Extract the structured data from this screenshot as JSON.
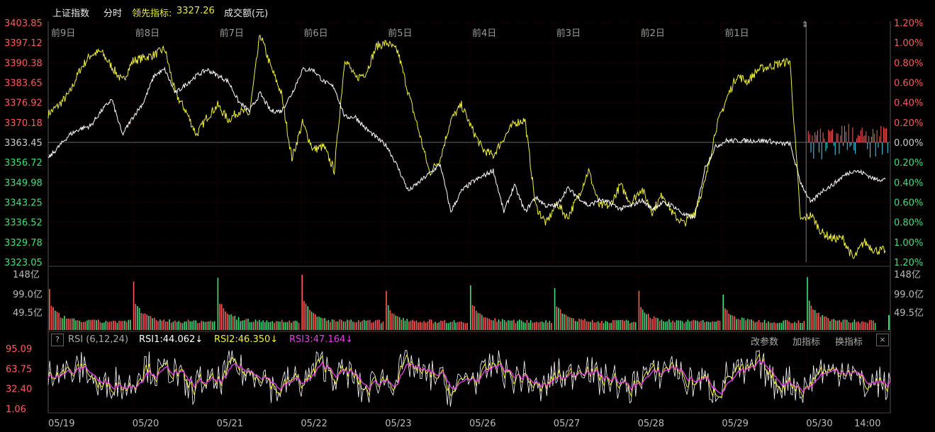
{
  "header": {
    "title": "上证指数",
    "mode": "分时",
    "lead_label": "领先指标:",
    "lead_value": "3327.26",
    "amount_label": "成交额(元)"
  },
  "colors": {
    "price_line": "#ffffff",
    "lead_line": "#f0f040",
    "up": "#ff5a5a",
    "down": "#3ee07a",
    "rsi1": "#ffffff",
    "rsi2": "#f0f040",
    "rsi3": "#e040e0",
    "flow_up": "#ff6060",
    "flow_down": "#40e0f0",
    "grid": "#3a0000"
  },
  "chart_data": [
    {
      "type": "line",
      "panel": "price",
      "day_labels": [
        "前9日",
        "前8日",
        "前7日",
        "前6日",
        "前5日",
        "前4日",
        "前3日",
        "前2日",
        "前1日"
      ],
      "x_labels": [
        "05/19",
        "05/20",
        "05/21",
        "05/22",
        "05/23",
        "05/26",
        "05/27",
        "05/28",
        "05/29",
        "05/30",
        "14:00"
      ],
      "y_left_ticks": [
        "3403.85",
        "3397.12",
        "3390.38",
        "3383.65",
        "3376.92",
        "3370.18",
        "3363.45",
        "3356.72",
        "3349.98",
        "3343.25",
        "3336.52",
        "3329.78",
        "3323.05"
      ],
      "y_right_ticks": [
        "1.20%",
        "1.00%",
        "0.80%",
        "0.60%",
        "0.40%",
        "0.20%",
        "0.00%",
        "0.20%",
        "0.40%",
        "0.60%",
        "0.80%",
        "1.00%",
        "1.20%"
      ],
      "ylim": [
        3323.05,
        3403.85
      ],
      "series": [
        {
          "values": [
            3358,
            3362,
            3366,
            3368,
            3369,
            3374,
            3378,
            3366,
            3372,
            3377,
            3386,
            3388,
            3380,
            3383,
            3386,
            3388,
            3386,
            3384,
            3377,
            3374,
            3380,
            3374,
            3374,
            3380,
            3388,
            3388,
            3384,
            3382,
            3372,
            3372,
            3368,
            3365,
            3362,
            3355,
            3347,
            3350,
            3353,
            3356,
            3340,
            3347,
            3350,
            3352,
            3354,
            3340,
            3349,
            3340,
            3345,
            3342,
            3342,
            3348,
            3345,
            3342,
            3344,
            3343,
            3341,
            3342,
            3344,
            3341,
            3343,
            3342,
            3339,
            3338,
            3355,
            3362,
            3364,
            3364,
            3364,
            3364,
            3364,
            3363,
            3363,
            3350,
            3343,
            3347,
            3349,
            3352,
            3354,
            3353,
            3351,
            3351
          ]
        },
        {
          "values": [
            3373,
            3376,
            3380,
            3388,
            3393,
            3394,
            3389,
            3384,
            3391,
            3392,
            3393,
            3395,
            3380,
            3374,
            3366,
            3372,
            3376,
            3371,
            3374,
            3373,
            3400,
            3389,
            3380,
            3358,
            3370,
            3361,
            3362,
            3354,
            3392,
            3385,
            3387,
            3396,
            3397,
            3394,
            3380,
            3367,
            3353,
            3358,
            3371,
            3376,
            3368,
            3361,
            3359,
            3365,
            3370,
            3371,
            3342,
            3336,
            3343,
            3338,
            3345,
            3354,
            3342,
            3342,
            3349,
            3343,
            3348,
            3340,
            3346,
            3339,
            3336,
            3340,
            3350,
            3368,
            3378,
            3386,
            3384,
            3388,
            3389,
            3390,
            3391,
            3337,
            3339,
            3333,
            3331,
            3331,
            3324,
            3330,
            3327,
            3327
          ]
        }
      ]
    },
    {
      "type": "bar",
      "panel": "volume",
      "y_ticks": [
        "148亿",
        "99.0亿",
        "49.5亿"
      ],
      "ylim": [
        0,
        148
      ],
      "days": 10,
      "day_open_values": [
        110,
        130,
        140,
        148,
        105,
        120,
        112,
        105,
        95,
        142
      ],
      "base_value": 18,
      "units": "亿"
    },
    {
      "type": "line",
      "panel": "rsi",
      "indicator_name": "RSI (6,12,24)",
      "rsi1_label": "RSI1:44.062↓",
      "rsi2_label": "RSI2:46.350↓",
      "rsi3_label": "RSI3:47.164↓",
      "y_ticks": [
        "95.09",
        "63.75",
        "32.40",
        "1.06"
      ],
      "ylim": [
        1.06,
        95.09
      ],
      "latest": {
        "rsi1": 44.062,
        "rsi2": 46.35,
        "rsi3": 47.164
      }
    }
  ],
  "rsi_toolbar": {
    "help": "?",
    "params": "改参数",
    "add": "加指标",
    "swap": "换指标",
    "close": "×"
  }
}
